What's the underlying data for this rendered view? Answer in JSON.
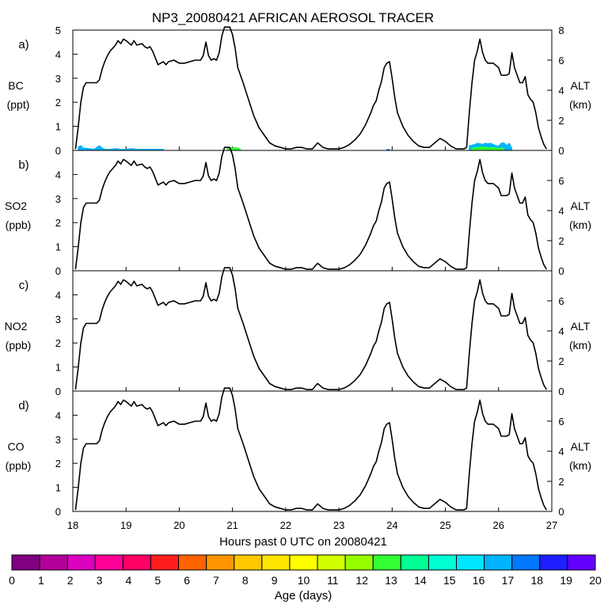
{
  "chart_data": {
    "type": "line",
    "title": "NP3_20080421 AFRICAN AEROSOL TRACER",
    "xlabel": "Hours past 0 UTC on 20080421",
    "xlim": [
      18,
      27
    ],
    "xticks": [
      18,
      19,
      20,
      21,
      22,
      23,
      24,
      25,
      26,
      27
    ],
    "altitude_series": {
      "name": "ALT (km)",
      "x": [
        18.05,
        18.1,
        18.15,
        18.2,
        18.25,
        18.3,
        18.35,
        18.45,
        18.5,
        18.55,
        18.6,
        18.65,
        18.7,
        18.8,
        18.85,
        18.9,
        18.95,
        19.0,
        19.1,
        19.15,
        19.2,
        19.3,
        19.35,
        19.4,
        19.45,
        19.5,
        19.6,
        19.7,
        19.75,
        19.8,
        19.9,
        20.0,
        20.1,
        20.2,
        20.3,
        20.4,
        20.45,
        20.5,
        20.55,
        20.6,
        20.65,
        20.7,
        20.75,
        20.8,
        20.85,
        20.9,
        20.95,
        21.0,
        21.05,
        21.1,
        21.2,
        21.3,
        21.4,
        21.5,
        21.6,
        21.7,
        21.8,
        21.9,
        22.0,
        22.1,
        22.2,
        22.3,
        22.4,
        22.5,
        22.6,
        22.7,
        22.8,
        22.9,
        23.0,
        23.1,
        23.2,
        23.3,
        23.4,
        23.5,
        23.6,
        23.65,
        23.7,
        23.75,
        23.8,
        23.85,
        23.9,
        23.95,
        24.0,
        24.05,
        24.1,
        24.2,
        24.3,
        24.4,
        24.5,
        24.6,
        24.7,
        24.8,
        24.9,
        25.0,
        25.1,
        25.2,
        25.3,
        25.35,
        25.4,
        25.45,
        25.5,
        25.55,
        25.6,
        25.65,
        25.7,
        25.75,
        25.8,
        25.9,
        26.0,
        26.05,
        26.1,
        26.15,
        26.2,
        26.25,
        26.3,
        26.4,
        26.45,
        26.5,
        26.55,
        26.6,
        26.65,
        26.7,
        26.75,
        26.8,
        26.85,
        26.9
      ],
      "y": [
        0.1,
        1.5,
        3.2,
        4.2,
        4.5,
        4.5,
        4.5,
        4.5,
        4.7,
        5.4,
        5.9,
        6.3,
        6.6,
        7.0,
        7.3,
        7.1,
        7.4,
        7.3,
        7.0,
        7.3,
        7.0,
        7.1,
        6.9,
        6.8,
        6.9,
        6.6,
        5.7,
        5.9,
        5.7,
        5.9,
        6.0,
        5.8,
        5.8,
        5.9,
        6.0,
        6.0,
        6.3,
        7.2,
        6.3,
        6.0,
        6.1,
        6.0,
        6.5,
        7.6,
        8.2,
        8.2,
        8.2,
        7.7,
        6.8,
        5.5,
        4.5,
        3.4,
        2.3,
        1.5,
        1.0,
        0.5,
        0.3,
        0.2,
        0.1,
        0.1,
        0.2,
        0.2,
        0.1,
        0.1,
        0.5,
        0.2,
        0.1,
        0.1,
        0.1,
        0.2,
        0.4,
        0.7,
        1.1,
        1.7,
        2.5,
        3.0,
        3.3,
        4.0,
        4.6,
        5.5,
        5.8,
        5.9,
        4.8,
        3.5,
        2.5,
        1.6,
        1.0,
        0.6,
        0.3,
        0.2,
        0.2,
        0.5,
        0.8,
        0.6,
        0.3,
        0.1,
        0.1,
        0.1,
        0.2,
        2.5,
        4.5,
        6.0,
        6.6,
        7.4,
        6.5,
        6.0,
        5.8,
        5.8,
        5.5,
        5.0,
        5.0,
        5.0,
        5.1,
        6.5,
        5.5,
        4.5,
        4.5,
        4.9,
        3.7,
        3.4,
        3.2,
        2.5,
        1.5,
        0.9,
        0.4,
        0.1
      ],
      "y_range": [
        0,
        8
      ]
    },
    "panels": [
      {
        "label": "a)",
        "ylabel": "BC",
        "ylabel_units": "(ppt)",
        "ylim": [
          0,
          5
        ],
        "yticks": [
          0,
          1,
          2,
          3,
          4,
          5
        ],
        "y2label": "ALT",
        "y2label_units": "(km)",
        "y2lim": [
          0,
          8
        ],
        "y2ticks": [
          0,
          2,
          4,
          6,
          8
        ],
        "tracer_series": [
          {
            "age_days": 17,
            "x": [
              18.1,
              18.15,
              18.2,
              18.3,
              18.4,
              18.5,
              18.55,
              18.6,
              18.7,
              18.8,
              18.9,
              19.0,
              19.1,
              19.2,
              19.3,
              19.4,
              19.5,
              19.6,
              19.7
            ],
            "values": [
              0.15,
              0.2,
              0.1,
              0.08,
              0.05,
              0.2,
              0.1,
              0.05,
              0.05,
              0.08,
              0.05,
              0.05,
              0.08,
              0.05,
              0.05,
              0.05,
              0.05,
              0.05,
              0.05
            ]
          },
          {
            "age_days": 13,
            "x": [
              20.9,
              20.95,
              21.0,
              21.05,
              21.1,
              21.15
            ],
            "values": [
              0.08,
              0.12,
              0.1,
              0.12,
              0.1,
              0.05
            ]
          },
          {
            "age_days": 18,
            "x": [
              23.9,
              23.95
            ],
            "values": [
              0.04,
              0.04
            ]
          },
          {
            "age_days": 17,
            "x": [
              25.45,
              25.5,
              25.55,
              25.6,
              25.65,
              25.7,
              25.75,
              25.8,
              25.85,
              25.9,
              25.95,
              26.0,
              26.05,
              26.1,
              26.15,
              26.2,
              26.25
            ],
            "values": [
              0.2,
              0.22,
              0.25,
              0.3,
              0.28,
              0.25,
              0.3,
              0.28,
              0.3,
              0.25,
              0.2,
              0.18,
              0.3,
              0.32,
              0.2,
              0.3,
              0.1
            ]
          },
          {
            "age_days": 13,
            "x": [
              25.5,
              25.6,
              25.7,
              25.8,
              25.9,
              26.0,
              26.1
            ],
            "values": [
              0.1,
              0.12,
              0.15,
              0.12,
              0.12,
              0.1,
              0.1
            ]
          }
        ]
      },
      {
        "label": "b)",
        "ylabel": "SO2",
        "ylabel_units": "(ppb)",
        "ylim": [
          0,
          5
        ],
        "yticks": [
          0,
          1,
          2,
          3,
          4
        ],
        "y2label": "ALT",
        "y2label_units": "(km)",
        "y2lim": [
          0,
          8
        ],
        "y2ticks": [
          0,
          2,
          4,
          6
        ],
        "tracer_series": []
      },
      {
        "label": "c)",
        "ylabel": "NO2",
        "ylabel_units": "(ppb)",
        "ylim": [
          0,
          5
        ],
        "yticks": [
          0,
          1,
          2,
          3,
          4
        ],
        "y2label": "ALT",
        "y2label_units": "(km)",
        "y2lim": [
          0,
          8
        ],
        "y2ticks": [
          0,
          2,
          4,
          6
        ],
        "tracer_series": []
      },
      {
        "label": "d)",
        "ylabel": "CO",
        "ylabel_units": "(ppb)",
        "ylim": [
          0,
          5
        ],
        "yticks": [
          0,
          1,
          2,
          3,
          4
        ],
        "y2label": "ALT",
        "y2label_units": "(km)",
        "y2lim": [
          0,
          8
        ],
        "y2ticks": [
          0,
          2,
          4,
          6
        ],
        "tracer_series": []
      }
    ],
    "colorbar": {
      "label": "Age (days)",
      "ticks": [
        0,
        1,
        2,
        3,
        4,
        5,
        6,
        7,
        8,
        9,
        10,
        11,
        12,
        13,
        14,
        15,
        16,
        17,
        18,
        19,
        20
      ],
      "colors": [
        "#800080",
        "#b4009b",
        "#dc00c0",
        "#ff0096",
        "#ff0064",
        "#ff1e1e",
        "#ff6400",
        "#ff9600",
        "#ffc800",
        "#ffe600",
        "#ffff00",
        "#d2ff00",
        "#96ff00",
        "#32ff32",
        "#00ff96",
        "#00ffd2",
        "#00e6ff",
        "#00b4ff",
        "#0078ff",
        "#1e1eff",
        "#6400ff"
      ]
    }
  }
}
